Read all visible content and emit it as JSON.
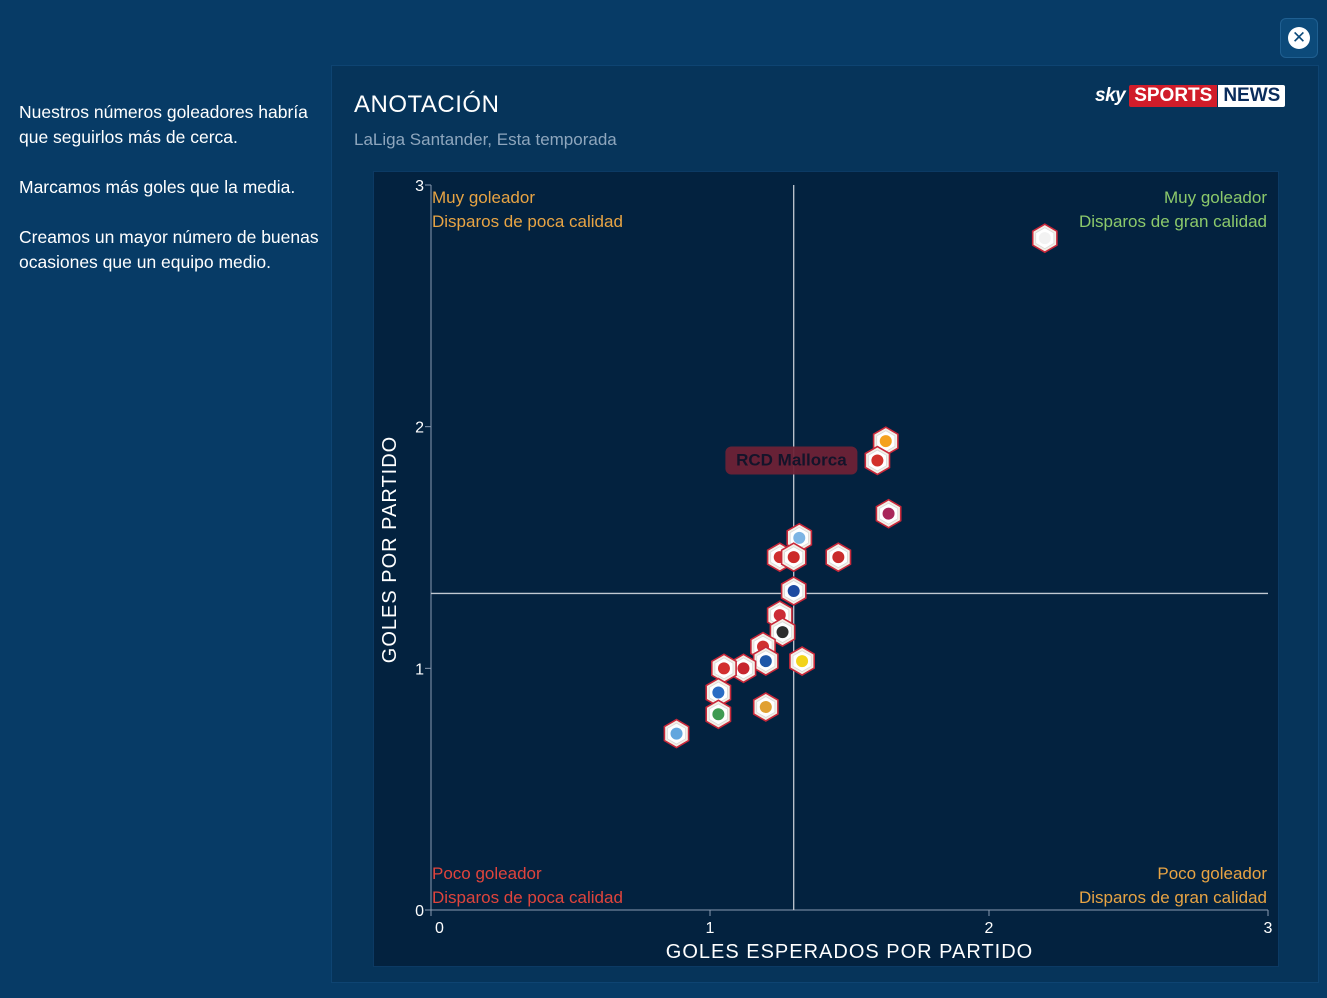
{
  "close_icon_glyph": "✕",
  "side_text": [
    "Nuestros números goleadores habría que seguirlos más de cerca.",
    "Marcamos más goles que la media.",
    "Creamos un mayor número de buenas ocasiones que un equipo medio."
  ],
  "panel": {
    "title": "ANOTACIÓN",
    "subtitle": "LaLiga Santander, Esta temporada",
    "logo": {
      "sky": "sky",
      "sports": "SPORTS",
      "news": "NEWS"
    }
  },
  "colors": {
    "top_left": "#e8a444",
    "top_right": "#8cc96b",
    "bottom_left": "#e0443c",
    "bottom_right": "#e8a444",
    "highlight_label_bg": "#6d2236",
    "highlight_label_text": "#14142a"
  },
  "chart_data": {
    "type": "scatter",
    "xlabel": "GOLES ESPERADOS POR PARTIDO",
    "ylabel": "GOLES POR PARTIDO",
    "xlim": [
      0,
      3
    ],
    "ylim": [
      0,
      3
    ],
    "x_ticks": [
      "0",
      "1",
      "2",
      "3"
    ],
    "y_ticks": [
      "0",
      "1",
      "2",
      "3"
    ],
    "average_lines": {
      "x": 1.3,
      "y": 1.31
    },
    "quadrants": {
      "top_left": [
        "Muy goleador",
        "Disparos de poca calidad"
      ],
      "top_right": [
        "Muy goleador",
        "Disparos de gran calidad"
      ],
      "bottom_left": [
        "Poco goleador",
        "Disparos de poca calidad"
      ],
      "bottom_right": [
        "Poco goleador",
        "Disparos de gran calidad"
      ]
    },
    "highlight": {
      "label": "RCD Mallorca",
      "x": 1.6,
      "y": 1.86
    },
    "points": [
      {
        "x": 2.2,
        "y": 2.78,
        "color": "#f2f2f2"
      },
      {
        "x": 1.63,
        "y": 1.94,
        "color": "#f4a11f"
      },
      {
        "x": 1.6,
        "y": 1.86,
        "color": "#d2312b"
      },
      {
        "x": 1.64,
        "y": 1.64,
        "color": "#a9265a"
      },
      {
        "x": 1.32,
        "y": 1.54,
        "color": "#7db4e4"
      },
      {
        "x": 1.25,
        "y": 1.46,
        "color": "#cf2e2e"
      },
      {
        "x": 1.3,
        "y": 1.46,
        "color": "#cc2a2a"
      },
      {
        "x": 1.46,
        "y": 1.46,
        "color": "#c92b2b"
      },
      {
        "x": 1.3,
        "y": 1.32,
        "color": "#1e4aa0"
      },
      {
        "x": 1.25,
        "y": 1.22,
        "color": "#cc2b36"
      },
      {
        "x": 1.26,
        "y": 1.15,
        "color": "#2d2d2d"
      },
      {
        "x": 1.19,
        "y": 1.09,
        "color": "#d03030"
      },
      {
        "x": 1.33,
        "y": 1.03,
        "color": "#f2d31a"
      },
      {
        "x": 1.2,
        "y": 1.03,
        "color": "#1e57a8"
      },
      {
        "x": 1.12,
        "y": 1.0,
        "color": "#c7262e"
      },
      {
        "x": 1.05,
        "y": 1.0,
        "color": "#d22f2f"
      },
      {
        "x": 1.03,
        "y": 0.9,
        "color": "#2a6cc4"
      },
      {
        "x": 1.03,
        "y": 0.81,
        "color": "#3f9b52"
      },
      {
        "x": 1.2,
        "y": 0.84,
        "color": "#e0a032"
      },
      {
        "x": 0.88,
        "y": 0.73,
        "color": "#62a6de"
      }
    ]
  }
}
